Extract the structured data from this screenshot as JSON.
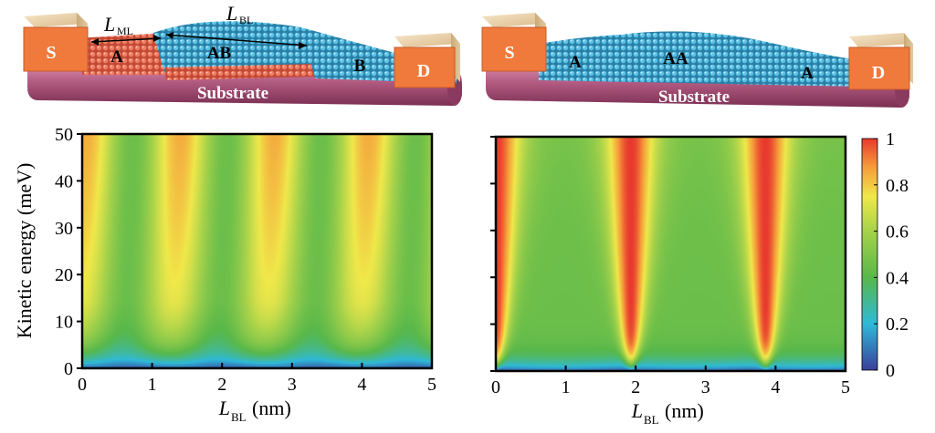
{
  "schematics": [
    {
      "source_label": "S",
      "drain_label": "D",
      "substrate_label": "Substrate",
      "region_labels": [
        "A",
        "AB",
        "B"
      ],
      "dimension_labels": [
        {
          "main": "L",
          "sub": "ML"
        },
        {
          "main": "L",
          "sub": "BL"
        }
      ],
      "colors": {
        "monolayer": "#e0684f",
        "bilayer": "#4fb3d9",
        "substrate": "#a8456a",
        "contact": "#f07a3c"
      }
    },
    {
      "source_label": "S",
      "drain_label": "D",
      "substrate_label": "Substrate",
      "region_labels": [
        "A",
        "AA",
        "A"
      ],
      "dimension_labels": [],
      "colors": {
        "lattice": "#4fb3d9",
        "substrate": "#a8456a",
        "contact": "#f07a3c"
      }
    }
  ],
  "chart_data": [
    {
      "type": "heatmap",
      "title": "",
      "xlabel": {
        "main": "L",
        "sub": "BL",
        "unit": "(nm)"
      },
      "ylabel": "Kinetic energy (meV)",
      "xlim": [
        0,
        5
      ],
      "ylim": [
        0,
        50
      ],
      "xticks": [
        "0",
        "1",
        "2",
        "3",
        "4",
        "5"
      ],
      "yticks": [
        "0",
        "10",
        "20",
        "30",
        "40",
        "50"
      ],
      "zlim": [
        0,
        1
      ],
      "description_values": {
        "period_nm": 1.35,
        "peak_x": [
          1.45,
          2.8,
          4.15
        ],
        "low_energy_min": 0.1
      }
    },
    {
      "type": "heatmap",
      "title": "",
      "xlabel": {
        "main": "L",
        "sub": "BL",
        "unit": "(nm)"
      },
      "ylabel": "",
      "xlim": [
        0,
        5
      ],
      "ylim": [
        0,
        50
      ],
      "xticks": [
        "0",
        "1",
        "2",
        "3",
        "4",
        "5"
      ],
      "yticks": [],
      "zlim": [
        0,
        1
      ],
      "description_values": {
        "period_nm": 1.93,
        "zero_x": [
          0,
          1.93,
          3.86
        ],
        "max_value": 1
      }
    }
  ],
  "colorbar": {
    "ticks": [
      "0",
      "0.2",
      "0.4",
      "0.6",
      "0.8",
      "1"
    ],
    "stops": [
      "#3a3f9a",
      "#2fb9d8",
      "#58b84a",
      "#a6d24a",
      "#f0e84a",
      "#f59a3a",
      "#e8392e"
    ]
  }
}
